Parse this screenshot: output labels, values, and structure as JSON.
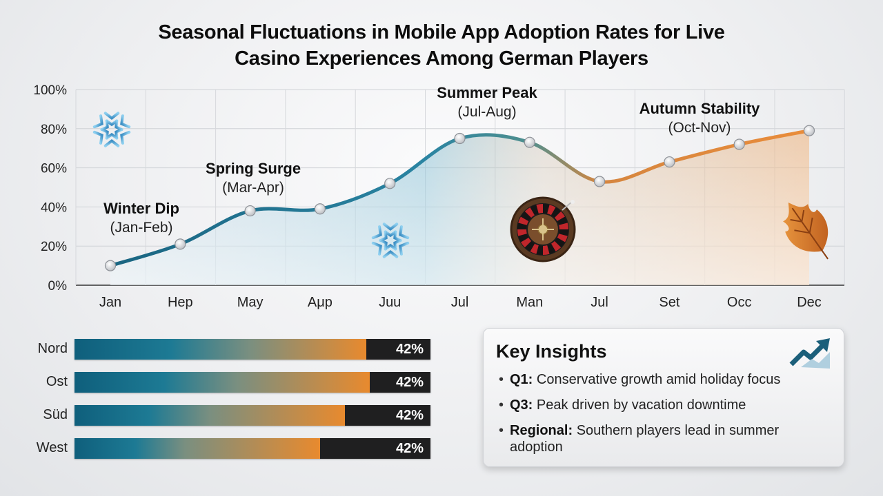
{
  "title_lines": [
    "Seasonal Fluctuations in Mobile App Adoption Rates for Live",
    "Casino Experiences Among German Players"
  ],
  "chart_data": [
    {
      "type": "line",
      "title": "Seasonal Fluctuations in Mobile App Adoption Rates for Live Casino Experiences Among German Players",
      "x": [
        "Jan",
        "Hep",
        "May",
        "Aμp",
        "Juu",
        "Jul",
        "Man",
        "Jul",
        "Set",
        "Occ",
        "Dec"
      ],
      "y": [
        10,
        21,
        38,
        39,
        52,
        75,
        73,
        53,
        63,
        72,
        79
      ],
      "ylim": [
        0,
        100
      ],
      "yticks": [
        "0%",
        "20%",
        "40%",
        "60%",
        "80%",
        "100%"
      ],
      "yticks_values": [
        0,
        20,
        40,
        60,
        80,
        100
      ],
      "grid": true,
      "area_fill": true,
      "colors": [
        "#1e6a86",
        "#e58a35"
      ],
      "annotations": [
        {
          "title": "Winter Dip",
          "subtitle": "(Jan-Feb)",
          "near_index": 0
        },
        {
          "title": "Spring Surge",
          "subtitle": "(Mar-Apr)",
          "near_index": 2
        },
        {
          "title": "Summer Peak",
          "subtitle": "(Jul-Aug)",
          "near_index": 5
        },
        {
          "title": "Autumn Stability",
          "subtitle": "(Oct-Nov)",
          "near_index": 8
        }
      ],
      "icons": [
        "snowflake-icon",
        "snowflake-icon",
        "roulette-wheel-icon",
        "autumn-leaf-icon"
      ]
    },
    {
      "type": "bar",
      "orientation": "horizontal",
      "categories": [
        "Nord",
        "Ost",
        "Süd",
        "West"
      ],
      "values": [
        42,
        42,
        42,
        42
      ],
      "value_labels": [
        "42%",
        "42%",
        "42%",
        "42%"
      ],
      "fill_fractions": [
        0.82,
        0.83,
        0.76,
        0.69
      ],
      "colors": [
        "#0f5f7c",
        "#e88a2e",
        "#1f1f20"
      ]
    }
  ],
  "insights": {
    "title": "Key Insights",
    "items": [
      {
        "label": "Q1:",
        "text": "Conservative growth amid holiday focus"
      },
      {
        "label": "Q3:",
        "text": "Peak driven by vacation downtime"
      },
      {
        "label": "Regional:",
        "text": "Southern players lead in summer adoption"
      }
    ],
    "icon": "trend-up-icon"
  }
}
